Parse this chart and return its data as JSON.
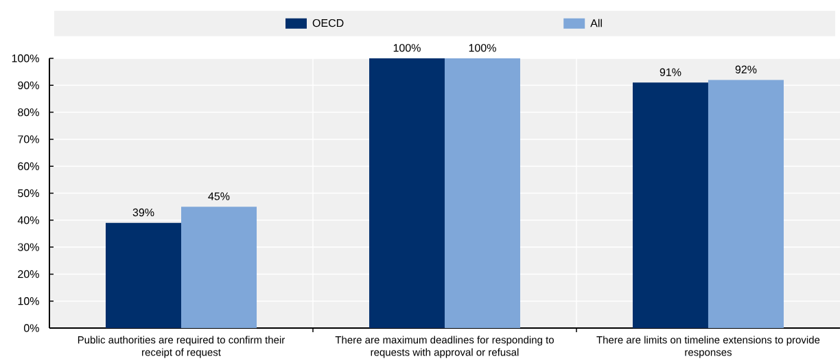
{
  "chart_data": {
    "type": "bar",
    "categories": [
      "Public authorities are required to confirm their receipt of request",
      "There are maximum deadlines for responding to requests with approval or refusal",
      "There are limits on timeline extensions to provide responses"
    ],
    "series": [
      {
        "name": "OECD",
        "color": "#002f6c",
        "values": [
          39,
          100,
          91
        ],
        "value_labels": [
          "39%",
          "100%",
          "91%"
        ]
      },
      {
        "name": "All",
        "color": "#7fa7d9",
        "values": [
          45,
          100,
          92
        ],
        "value_labels": [
          "45%",
          "100%",
          "92%"
        ]
      }
    ],
    "ylim": [
      0,
      100
    ],
    "yticks": [
      {
        "value": 0,
        "label": "0%"
      },
      {
        "value": 10,
        "label": "10%"
      },
      {
        "value": 20,
        "label": "20%"
      },
      {
        "value": 30,
        "label": "30%"
      },
      {
        "value": 40,
        "label": "40%"
      },
      {
        "value": 50,
        "label": "50%"
      },
      {
        "value": 60,
        "label": "60%"
      },
      {
        "value": 70,
        "label": "70%"
      },
      {
        "value": 80,
        "label": "80%"
      },
      {
        "value": 90,
        "label": "90%"
      },
      {
        "value": 100,
        "label": "100%"
      }
    ],
    "grid": true,
    "legend": "top"
  }
}
